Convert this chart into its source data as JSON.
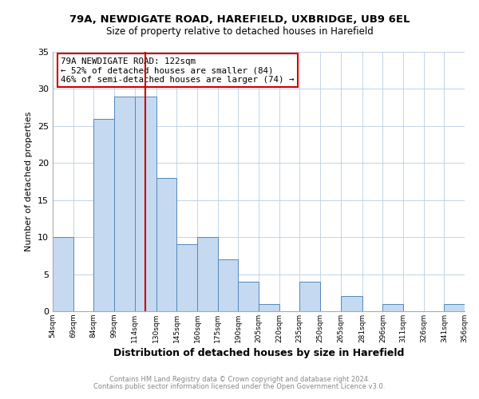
{
  "title1": "79A, NEWDIGATE ROAD, HAREFIELD, UXBRIDGE, UB9 6EL",
  "title2": "Size of property relative to detached houses in Harefield",
  "xlabel": "Distribution of detached houses by size in Harefield",
  "ylabel": "Number of detached properties",
  "footer1": "Contains HM Land Registry data © Crown copyright and database right 2024.",
  "footer2": "Contains public sector information licensed under the Open Government Licence v3.0.",
  "annotation_line1": "79A NEWDIGATE ROAD: 122sqm",
  "annotation_line2": "← 52% of detached houses are smaller (84)",
  "annotation_line3": "46% of semi-detached houses are larger (74) →",
  "bar_color": "#c5d9f0",
  "bar_edge_color": "#5588bb",
  "ref_line_color": "#cc0000",
  "ref_line_x": 122,
  "bin_edges": [
    54,
    69,
    84,
    99,
    114,
    130,
    145,
    160,
    175,
    190,
    205,
    220,
    235,
    250,
    265,
    281,
    296,
    311,
    326,
    341,
    356
  ],
  "bin_heights": [
    10,
    0,
    26,
    29,
    29,
    18,
    9,
    10,
    7,
    4,
    1,
    0,
    4,
    0,
    2,
    0,
    1,
    0,
    0,
    1
  ],
  "ylim": [
    0,
    35
  ],
  "yticks": [
    0,
    5,
    10,
    15,
    20,
    25,
    30,
    35
  ],
  "xlim": [
    54,
    356
  ],
  "annotation_box_edge": "#cc0000",
  "bg_color": "#ffffff",
  "grid_color": "#b8cfe0"
}
